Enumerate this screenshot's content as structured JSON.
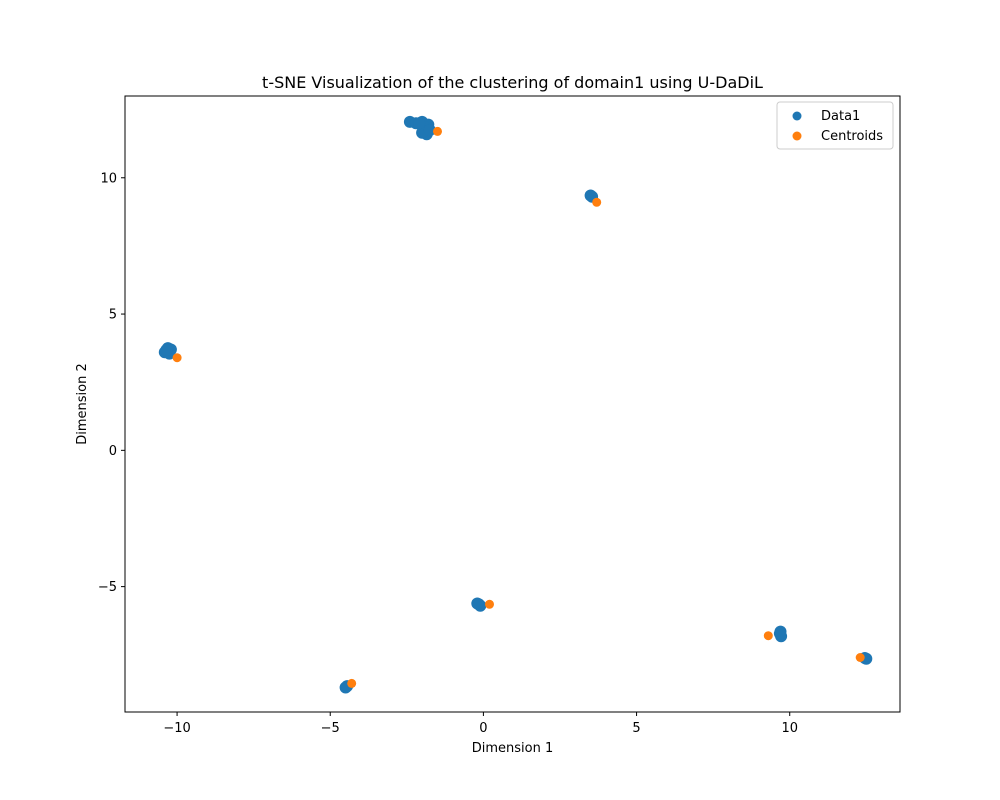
{
  "chart_data": {
    "type": "scatter",
    "title": "t-SNE Visualization of the clustering of domain1 using U-DaDiL",
    "xlabel": "Dimension 1",
    "ylabel": "Dimension 2",
    "xlim": [
      -11.7,
      13.6
    ],
    "ylim": [
      -9.6,
      13.0
    ],
    "xticks": [
      -10,
      -5,
      0,
      5,
      10
    ],
    "yticks": [
      -5,
      0,
      5,
      10
    ],
    "xtick_labels": [
      "−10",
      "−5",
      "0",
      "5",
      "10"
    ],
    "ytick_labels": [
      "−5",
      "0",
      "5",
      "10"
    ],
    "legend": {
      "position": "top-right"
    },
    "series": [
      {
        "name": "Data1",
        "color": "#1f77b4",
        "points": [
          [
            -10.4,
            3.6
          ],
          [
            -10.2,
            3.7
          ],
          [
            -10.3,
            3.75
          ],
          [
            -10.25,
            3.55
          ],
          [
            -10.35,
            3.68
          ],
          [
            -2.4,
            12.05
          ],
          [
            -2.2,
            12.0
          ],
          [
            -2.0,
            12.05
          ],
          [
            -1.8,
            11.95
          ],
          [
            -1.9,
            11.85
          ],
          [
            -2.0,
            11.65
          ],
          [
            -1.85,
            11.6
          ],
          [
            -1.95,
            11.7
          ],
          [
            -2.1,
            12.0
          ],
          [
            -1.75,
            11.75
          ],
          [
            3.5,
            9.35
          ],
          [
            3.55,
            9.3
          ],
          [
            -0.15,
            -5.65
          ],
          [
            -0.1,
            -5.7
          ],
          [
            -0.2,
            -5.62
          ],
          [
            9.7,
            -6.65
          ],
          [
            9.72,
            -6.82
          ],
          [
            9.68,
            -6.72
          ],
          [
            12.5,
            -7.65
          ],
          [
            12.45,
            -7.62
          ],
          [
            -4.5,
            -8.7
          ],
          [
            -4.45,
            -8.65
          ]
        ]
      },
      {
        "name": "Centroids",
        "color": "#ff7f0e",
        "points": [
          [
            -10.0,
            3.4
          ],
          [
            -1.5,
            11.7
          ],
          [
            3.7,
            9.1
          ],
          [
            0.2,
            -5.65
          ],
          [
            9.3,
            -6.8
          ],
          [
            12.3,
            -7.6
          ],
          [
            -4.3,
            -8.55
          ]
        ]
      }
    ]
  }
}
